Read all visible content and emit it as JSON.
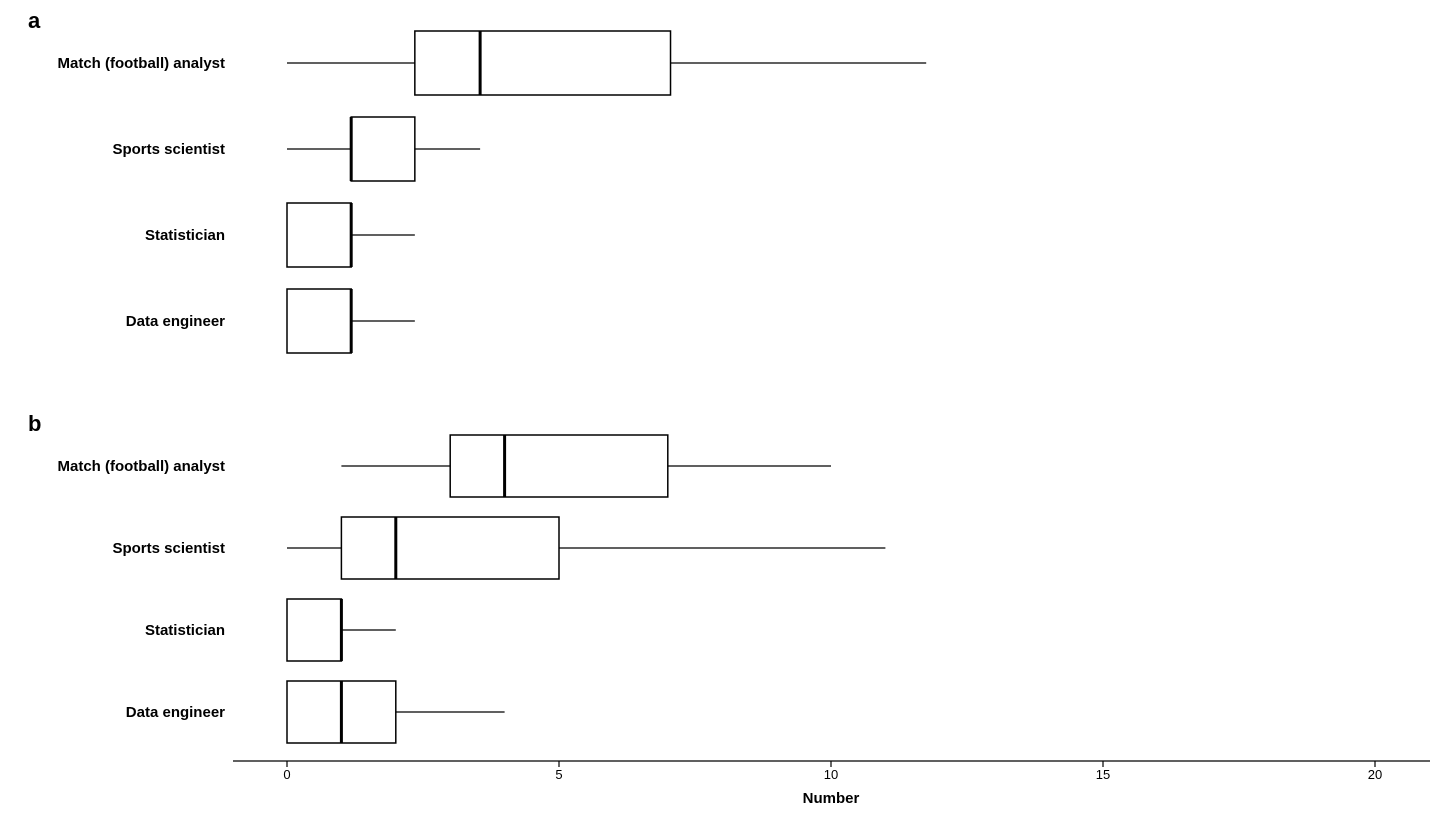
{
  "chart_data": {
    "type": "boxplot",
    "orientation": "horizontal",
    "xlabel": "Number",
    "xlim": [
      -1,
      20.3
    ],
    "xticks": [
      0,
      5,
      10,
      15,
      20
    ],
    "panels": [
      {
        "label": "a",
        "boxes": [
          {
            "category": "Match (football) analyst",
            "min": 0,
            "q1": 2.35,
            "median": 3.55,
            "q3": 7.05,
            "max": 11.75
          },
          {
            "category": "Sports scientist",
            "min": 0,
            "q1": 1.18,
            "median": 1.18,
            "q3": 2.35,
            "max": 3.55
          },
          {
            "category": "Statistician",
            "min": 0,
            "q1": 0,
            "median": 1.18,
            "q3": 1.18,
            "max": 2.35
          },
          {
            "category": "Data engineer",
            "min": 0,
            "q1": 0,
            "median": 1.18,
            "q3": 1.18,
            "max": 2.35
          }
        ]
      },
      {
        "label": "b",
        "boxes": [
          {
            "category": "Match (football) analyst",
            "min": 1,
            "q1": 3,
            "median": 4,
            "q3": 7,
            "max": 10
          },
          {
            "category": "Sports scientist",
            "min": 0,
            "q1": 1,
            "median": 2,
            "q3": 5,
            "max": 11
          },
          {
            "category": "Statistician",
            "min": 0,
            "q1": 0,
            "median": 1,
            "q3": 1,
            "max": 2
          },
          {
            "category": "Data engineer",
            "min": 0,
            "q1": 0,
            "median": 1,
            "q3": 2,
            "max": 4
          }
        ]
      }
    ]
  }
}
